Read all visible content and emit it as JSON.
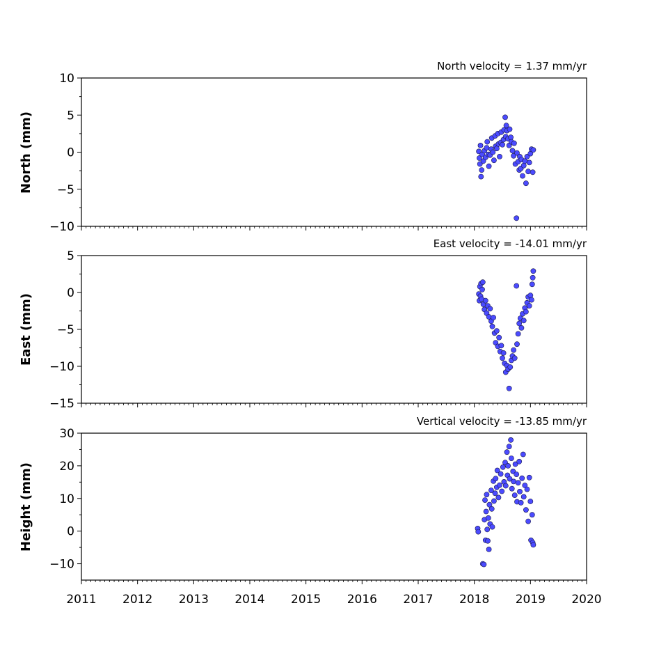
{
  "chart_data": [
    {
      "type": "scatter",
      "id": "north",
      "title": "North velocity = 1.37 mm/yr",
      "ylabel": "North (mm)",
      "ylim": [
        -10,
        10
      ],
      "yticks": [
        10,
        5,
        0,
        -5,
        -10
      ],
      "ytick_labels": [
        "10",
        "5",
        "0",
        "−5",
        "−10"
      ],
      "xlim": [
        2011,
        2020
      ],
      "marker_color": "#4b4bff",
      "points": [
        [
          2018.08,
          0.1
        ],
        [
          2018.09,
          -0.8
        ],
        [
          2018.1,
          -1.6
        ],
        [
          2018.11,
          0.9
        ],
        [
          2018.12,
          -3.3
        ],
        [
          2018.13,
          -2.4
        ],
        [
          2018.14,
          -0.3
        ],
        [
          2018.16,
          -1.2
        ],
        [
          2018.18,
          0.2
        ],
        [
          2018.2,
          -0.7
        ],
        [
          2018.22,
          0.6
        ],
        [
          2018.23,
          1.4
        ],
        [
          2018.25,
          -0.3
        ],
        [
          2018.26,
          -1.9
        ],
        [
          2018.28,
          -0.4
        ],
        [
          2018.3,
          0.4
        ],
        [
          2018.31,
          1.9
        ],
        [
          2018.33,
          0.0
        ],
        [
          2018.35,
          -1.1
        ],
        [
          2018.37,
          2.2
        ],
        [
          2018.38,
          0.8
        ],
        [
          2018.4,
          0.5
        ],
        [
          2018.42,
          2.5
        ],
        [
          2018.43,
          1.1
        ],
        [
          2018.45,
          -0.6
        ],
        [
          2018.47,
          1.3
        ],
        [
          2018.48,
          2.7
        ],
        [
          2018.5,
          1.0
        ],
        [
          2018.52,
          1.7
        ],
        [
          2018.53,
          3.0
        ],
        [
          2018.55,
          4.7
        ],
        [
          2018.56,
          2.1
        ],
        [
          2018.57,
          3.6
        ],
        [
          2018.58,
          2.9
        ],
        [
          2018.6,
          1.8
        ],
        [
          2018.62,
          0.9
        ],
        [
          2018.63,
          3.1
        ],
        [
          2018.65,
          2.0
        ],
        [
          2018.66,
          1.4
        ],
        [
          2018.68,
          0.2
        ],
        [
          2018.7,
          -0.5
        ],
        [
          2018.71,
          1.2
        ],
        [
          2018.73,
          -1.6
        ],
        [
          2018.75,
          -8.9
        ],
        [
          2018.76,
          -0.1
        ],
        [
          2018.78,
          -1.3
        ],
        [
          2018.8,
          -2.4
        ],
        [
          2018.81,
          -0.6
        ],
        [
          2018.83,
          -2.2
        ],
        [
          2018.84,
          -1.0
        ],
        [
          2018.86,
          -3.2
        ],
        [
          2018.88,
          -1.8
        ],
        [
          2018.9,
          -1.2
        ],
        [
          2018.92,
          -4.2
        ],
        [
          2018.94,
          -0.6
        ],
        [
          2018.96,
          -2.6
        ],
        [
          2018.98,
          -1.4
        ],
        [
          2019.0,
          -0.2
        ],
        [
          2019.02,
          0.4
        ],
        [
          2019.04,
          -2.7
        ],
        [
          2019.05,
          0.3
        ]
      ]
    },
    {
      "type": "scatter",
      "id": "east",
      "title": "East velocity = -14.01 mm/yr",
      "ylabel": "East (mm)",
      "ylim": [
        -15,
        5
      ],
      "yticks": [
        5,
        0,
        -5,
        -10,
        -15
      ],
      "ytick_labels": [
        "5",
        "0",
        "−5",
        "−10",
        "−15"
      ],
      "xlim": [
        2011,
        2020
      ],
      "marker_color": "#4b4bff",
      "points": [
        [
          2018.08,
          -0.2
        ],
        [
          2018.09,
          -1.1
        ],
        [
          2018.1,
          0.8
        ],
        [
          2018.11,
          -0.5
        ],
        [
          2018.12,
          1.2
        ],
        [
          2018.13,
          -0.9
        ],
        [
          2018.14,
          0.4
        ],
        [
          2018.15,
          1.4
        ],
        [
          2018.16,
          -1.6
        ],
        [
          2018.18,
          -2.3
        ],
        [
          2018.2,
          -1.1
        ],
        [
          2018.22,
          -2.8
        ],
        [
          2018.24,
          -1.8
        ],
        [
          2018.26,
          -3.3
        ],
        [
          2018.28,
          -2.2
        ],
        [
          2018.3,
          -3.9
        ],
        [
          2018.32,
          -4.6
        ],
        [
          2018.34,
          -3.4
        ],
        [
          2018.36,
          -5.5
        ],
        [
          2018.38,
          -6.8
        ],
        [
          2018.4,
          -5.2
        ],
        [
          2018.42,
          -7.3
        ],
        [
          2018.44,
          -6.1
        ],
        [
          2018.46,
          -8.0
        ],
        [
          2018.48,
          -7.2
        ],
        [
          2018.5,
          -8.9
        ],
        [
          2018.52,
          -8.2
        ],
        [
          2018.54,
          -9.6
        ],
        [
          2018.56,
          -10.8
        ],
        [
          2018.58,
          -9.9
        ],
        [
          2018.6,
          -10.4
        ],
        [
          2018.62,
          -13.0
        ],
        [
          2018.64,
          -10.1
        ],
        [
          2018.66,
          -9.2
        ],
        [
          2018.68,
          -8.6
        ],
        [
          2018.7,
          -7.8
        ],
        [
          2018.72,
          -8.9
        ],
        [
          2018.75,
          0.9
        ],
        [
          2018.76,
          -7.0
        ],
        [
          2018.78,
          -5.6
        ],
        [
          2018.8,
          -4.2
        ],
        [
          2018.82,
          -3.5
        ],
        [
          2018.84,
          -4.8
        ],
        [
          2018.86,
          -2.9
        ],
        [
          2018.88,
          -3.8
        ],
        [
          2018.9,
          -2.1
        ],
        [
          2018.92,
          -2.6
        ],
        [
          2018.94,
          -1.4
        ],
        [
          2018.96,
          -0.6
        ],
        [
          2018.98,
          -1.8
        ],
        [
          2019.0,
          -0.4
        ],
        [
          2019.02,
          -1.0
        ],
        [
          2019.03,
          1.1
        ],
        [
          2019.04,
          2.0
        ],
        [
          2019.05,
          2.9
        ]
      ]
    },
    {
      "type": "scatter",
      "id": "height",
      "title": "Vertical velocity = -13.85 mm/yr",
      "ylabel": "Height (mm)",
      "ylim": [
        -15,
        30
      ],
      "yticks": [
        30,
        20,
        10,
        0,
        -10
      ],
      "ytick_labels": [
        "30",
        "20",
        "10",
        "0",
        "−10"
      ],
      "xlabels": [
        "2011",
        "2012",
        "2013",
        "2014",
        "2015",
        "2016",
        "2017",
        "2018",
        "2019",
        "2020"
      ],
      "xlim": [
        2011,
        2020
      ],
      "marker_color": "#4b4bff",
      "points": [
        [
          2018.06,
          0.8
        ],
        [
          2018.07,
          -0.2
        ],
        [
          2018.15,
          -10.0
        ],
        [
          2018.17,
          -10.2
        ],
        [
          2018.18,
          3.5
        ],
        [
          2018.19,
          9.5
        ],
        [
          2018.2,
          -2.8
        ],
        [
          2018.21,
          6.0
        ],
        [
          2018.22,
          11.2
        ],
        [
          2018.23,
          0.5
        ],
        [
          2018.24,
          -3.0
        ],
        [
          2018.25,
          4.0
        ],
        [
          2018.26,
          -5.6
        ],
        [
          2018.27,
          8.1
        ],
        [
          2018.28,
          2.2
        ],
        [
          2018.3,
          12.5
        ],
        [
          2018.31,
          6.8
        ],
        [
          2018.32,
          1.3
        ],
        [
          2018.34,
          15.3
        ],
        [
          2018.35,
          9.2
        ],
        [
          2018.37,
          11.6
        ],
        [
          2018.38,
          16.1
        ],
        [
          2018.4,
          13.4
        ],
        [
          2018.41,
          18.6
        ],
        [
          2018.43,
          10.3
        ],
        [
          2018.45,
          14.1
        ],
        [
          2018.47,
          17.5
        ],
        [
          2018.49,
          12.2
        ],
        [
          2018.51,
          19.6
        ],
        [
          2018.53,
          15.1
        ],
        [
          2018.55,
          21.0
        ],
        [
          2018.56,
          13.9
        ],
        [
          2018.58,
          24.2
        ],
        [
          2018.59,
          17.1
        ],
        [
          2018.6,
          20.0
        ],
        [
          2018.62,
          25.9
        ],
        [
          2018.63,
          16.0
        ],
        [
          2018.65,
          27.9
        ],
        [
          2018.66,
          22.3
        ],
        [
          2018.67,
          13.0
        ],
        [
          2018.69,
          18.3
        ],
        [
          2018.7,
          15.2
        ],
        [
          2018.72,
          11.0
        ],
        [
          2018.73,
          20.5
        ],
        [
          2018.75,
          17.4
        ],
        [
          2018.76,
          9.0
        ],
        [
          2018.78,
          14.8
        ],
        [
          2018.8,
          21.3
        ],
        [
          2018.81,
          12.1
        ],
        [
          2018.83,
          8.7
        ],
        [
          2018.85,
          16.2
        ],
        [
          2018.87,
          23.5
        ],
        [
          2018.88,
          10.5
        ],
        [
          2018.9,
          14.0
        ],
        [
          2018.92,
          6.5
        ],
        [
          2018.94,
          12.8
        ],
        [
          2018.96,
          3.0
        ],
        [
          2018.98,
          16.4
        ],
        [
          2019.0,
          9.1
        ],
        [
          2019.01,
          -2.8
        ],
        [
          2019.03,
          5.0
        ],
        [
          2019.04,
          -3.5
        ],
        [
          2019.05,
          -4.2
        ]
      ]
    }
  ]
}
